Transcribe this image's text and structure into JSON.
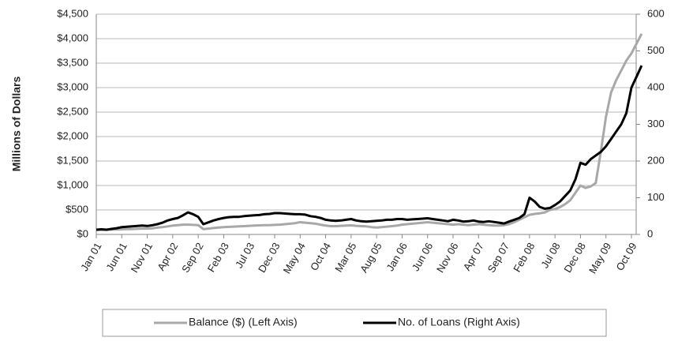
{
  "chart_data": {
    "type": "line",
    "ylabel": "Millions of Dollars",
    "categories": [
      "Jan 01",
      null,
      null,
      null,
      null,
      "Jun 01",
      null,
      null,
      null,
      null,
      "Nov 01",
      null,
      null,
      null,
      null,
      "Apr 02",
      null,
      null,
      null,
      null,
      "Sep 02",
      null,
      null,
      null,
      null,
      "Feb 03",
      null,
      null,
      null,
      null,
      "Jul 03",
      null,
      null,
      null,
      null,
      "Dec 03",
      null,
      null,
      null,
      null,
      "May 04",
      null,
      null,
      null,
      null,
      "Oct 04",
      null,
      null,
      null,
      null,
      "Mar 05",
      null,
      null,
      null,
      null,
      "Aug 05",
      null,
      null,
      null,
      null,
      "Jan 06",
      null,
      null,
      null,
      null,
      "Jun 06",
      null,
      null,
      null,
      null,
      "Nov 06",
      null,
      null,
      null,
      null,
      "Apr 07",
      null,
      null,
      null,
      null,
      "Sep 07",
      null,
      null,
      null,
      null,
      "Feb 08",
      null,
      null,
      null,
      null,
      "Jul 08",
      null,
      null,
      null,
      null,
      "Dec 08",
      null,
      null,
      null,
      null,
      "May 09",
      null,
      null,
      null,
      null,
      "Oct 09",
      null,
      null
    ],
    "series": [
      {
        "name": "Balance ($) (Left Axis)",
        "color": "#a8a8a8",
        "axis": "y",
        "values": [
          90,
          95,
          95,
          100,
          100,
          105,
          110,
          110,
          115,
          120,
          120,
          125,
          140,
          150,
          165,
          180,
          190,
          200,
          200,
          195,
          190,
          110,
          120,
          130,
          140,
          150,
          155,
          160,
          165,
          170,
          175,
          180,
          185,
          190,
          190,
          195,
          200,
          210,
          220,
          230,
          250,
          240,
          230,
          220,
          200,
          180,
          170,
          170,
          175,
          180,
          185,
          175,
          170,
          165,
          150,
          140,
          150,
          160,
          170,
          180,
          200,
          210,
          220,
          230,
          240,
          250,
          240,
          230,
          220,
          210,
          200,
          210,
          200,
          190,
          200,
          210,
          200,
          190,
          180,
          180,
          190,
          210,
          250,
          300,
          350,
          400,
          420,
          430,
          450,
          500,
          520,
          560,
          620,
          700,
          850,
          1000,
          950,
          980,
          1050,
          1700,
          2400,
          2900,
          3150,
          3350,
          3550,
          3700,
          3900,
          4100
        ]
      },
      {
        "name": "No. of Loans (Right Axis)",
        "color": "#000000",
        "axis": "y2",
        "values": [
          13,
          14,
          13,
          15,
          17,
          20,
          21,
          22,
          23,
          24,
          23,
          25,
          28,
          32,
          38,
          42,
          45,
          52,
          60,
          55,
          48,
          28,
          33,
          38,
          42,
          45,
          47,
          48,
          48,
          50,
          51,
          52,
          53,
          55,
          56,
          58,
          58,
          57,
          56,
          55,
          55,
          54,
          50,
          48,
          45,
          40,
          38,
          37,
          38,
          40,
          42,
          38,
          36,
          35,
          36,
          37,
          38,
          40,
          40,
          42,
          42,
          40,
          41,
          42,
          43,
          44,
          42,
          40,
          38,
          36,
          40,
          38,
          35,
          36,
          38,
          35,
          34,
          36,
          34,
          32,
          30,
          35,
          40,
          45,
          55,
          100,
          90,
          75,
          70,
          72,
          80,
          90,
          105,
          120,
          150,
          195,
          190,
          205,
          215,
          225,
          240,
          260,
          280,
          300,
          330,
          400,
          430,
          460
        ]
      }
    ],
    "ylim": [
      0,
      4500
    ],
    "yticks": [
      {
        "value": 0,
        "label": "$0"
      },
      {
        "value": 500,
        "label": "$500"
      },
      {
        "value": 1000,
        "label": "$1,000"
      },
      {
        "value": 1500,
        "label": "$1,500"
      },
      {
        "value": 2000,
        "label": "$2,000"
      },
      {
        "value": 2500,
        "label": "$2,500"
      },
      {
        "value": 3000,
        "label": "$3,000"
      },
      {
        "value": 3500,
        "label": "$3,500"
      },
      {
        "value": 4000,
        "label": "$4,000"
      },
      {
        "value": 4500,
        "label": "$4,500"
      }
    ],
    "y2lim": [
      0,
      600
    ],
    "y2ticks": [
      0,
      100,
      200,
      300,
      400,
      500,
      600
    ],
    "grid": true
  }
}
